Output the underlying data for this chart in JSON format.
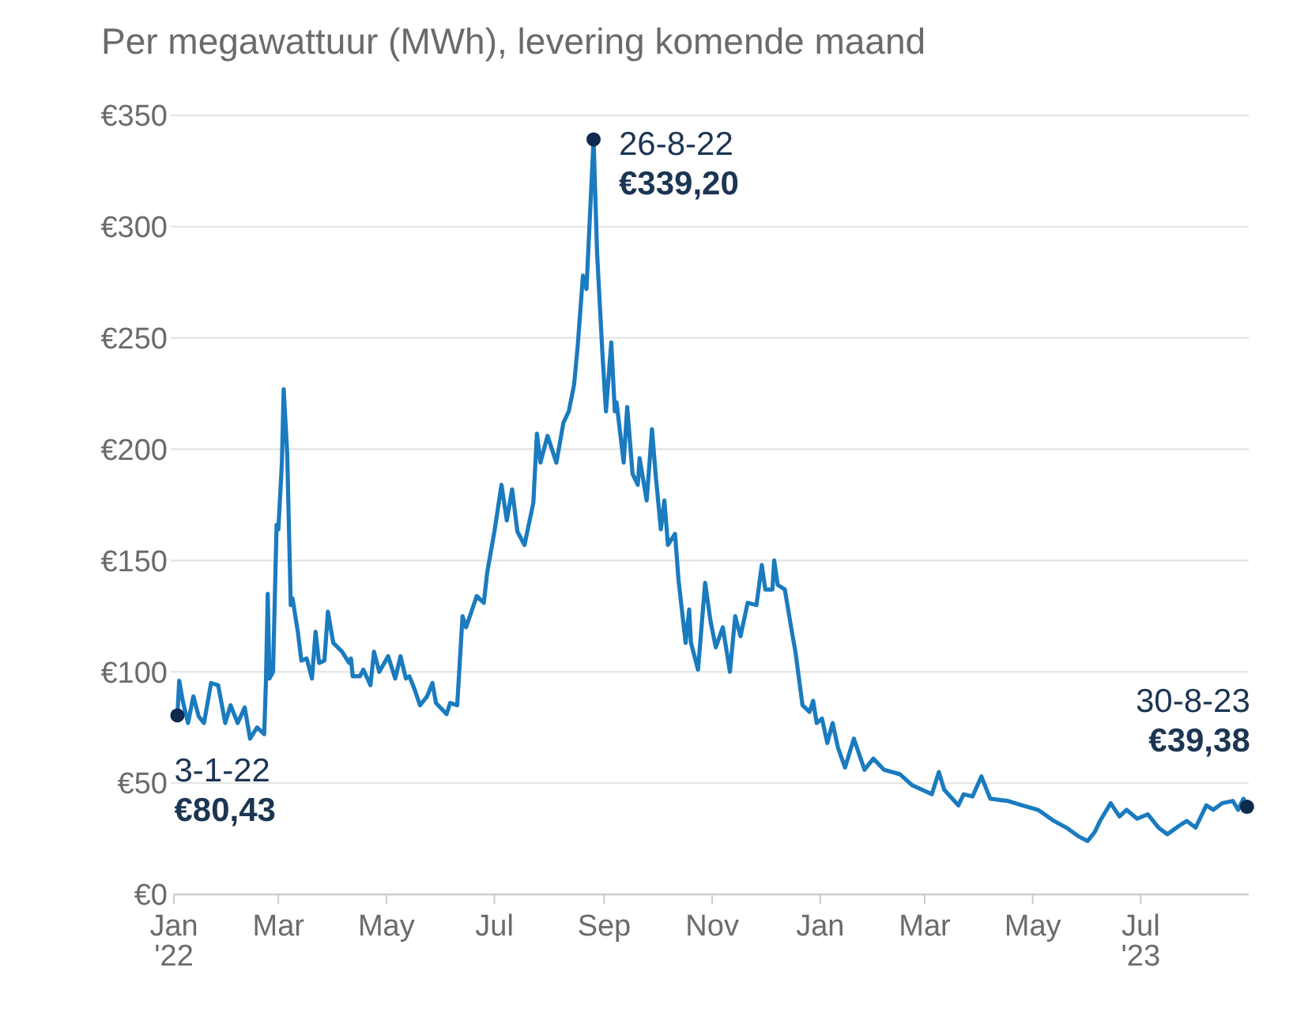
{
  "chart_data": {
    "type": "line",
    "title": "Per megawattuur (MWh), levering komende maand",
    "xlim": [
      "2022-01-01",
      "2023-08-31"
    ],
    "xticks": [
      {
        "value": "2022-01-01",
        "label": "Jan\n'22"
      },
      {
        "value": "2022-03-01",
        "label": "Mar"
      },
      {
        "value": "2022-05-01",
        "label": "May"
      },
      {
        "value": "2022-07-01",
        "label": "Jul"
      },
      {
        "value": "2022-09-01",
        "label": "Sep"
      },
      {
        "value": "2022-11-01",
        "label": "Nov"
      },
      {
        "value": "2023-01-01",
        "label": "Jan"
      },
      {
        "value": "2023-03-01",
        "label": "Mar"
      },
      {
        "value": "2023-05-01",
        "label": "May"
      },
      {
        "value": "2023-07-01",
        "label": "Jul\n\n'23"
      }
    ],
    "ylim": [
      0,
      350
    ],
    "yticks": [
      {
        "value": 0,
        "label": "€0"
      },
      {
        "value": 50,
        "label": "€50"
      },
      {
        "value": 100,
        "label": "€100"
      },
      {
        "value": 150,
        "label": "€150"
      },
      {
        "value": 200,
        "label": "€200"
      },
      {
        "value": 250,
        "label": "€250"
      },
      {
        "value": 300,
        "label": "€300"
      },
      {
        "value": 350,
        "label": "€350"
      }
    ],
    "grid": "y",
    "marker": "none",
    "line_style": "solid",
    "series": [
      {
        "color": "#1a7bbf",
        "x": [
          "2022-01-03",
          "2022-01-04",
          "2022-01-06",
          "2022-01-09",
          "2022-01-12",
          "2022-01-15",
          "2022-01-18",
          "2022-01-22",
          "2022-01-26",
          "2022-01-30",
          "2022-02-02",
          "2022-02-06",
          "2022-02-10",
          "2022-02-13",
          "2022-02-17",
          "2022-02-21",
          "2022-02-22",
          "2022-02-23",
          "2022-02-24",
          "2022-02-26",
          "2022-02-28",
          "2022-03-01",
          "2022-03-03",
          "2022-03-04",
          "2022-03-06",
          "2022-03-08",
          "2022-03-09",
          "2022-03-12",
          "2022-03-14",
          "2022-03-17",
          "2022-03-20",
          "2022-03-22",
          "2022-03-24",
          "2022-03-27",
          "2022-03-29",
          "2022-04-01",
          "2022-04-06",
          "2022-04-10",
          "2022-04-11",
          "2022-04-12",
          "2022-04-16",
          "2022-04-18",
          "2022-04-22",
          "2022-04-24",
          "2022-04-27",
          "2022-05-02",
          "2022-05-06",
          "2022-05-09",
          "2022-05-12",
          "2022-05-14",
          "2022-05-17",
          "2022-05-20",
          "2022-05-24",
          "2022-05-27",
          "2022-05-29",
          "2022-06-04",
          "2022-06-06",
          "2022-06-10",
          "2022-06-13",
          "2022-06-15",
          "2022-06-18",
          "2022-06-21",
          "2022-06-25",
          "2022-06-27",
          "2022-07-01",
          "2022-07-05",
          "2022-07-08",
          "2022-07-11",
          "2022-07-14",
          "2022-07-18",
          "2022-07-23",
          "2022-07-25",
          "2022-07-27",
          "2022-07-31",
          "2022-08-05",
          "2022-08-09",
          "2022-08-12",
          "2022-08-15",
          "2022-08-17",
          "2022-08-20",
          "2022-08-22",
          "2022-08-26",
          "2022-08-28",
          "2022-08-31",
          "2022-09-02",
          "2022-09-05",
          "2022-09-07",
          "2022-09-08",
          "2022-09-12",
          "2022-09-14",
          "2022-09-17",
          "2022-09-20",
          "2022-09-21",
          "2022-09-25",
          "2022-09-28",
          "2022-09-30",
          "2022-10-03",
          "2022-10-05",
          "2022-10-07",
          "2022-10-11",
          "2022-10-13",
          "2022-10-17",
          "2022-10-19",
          "2022-10-20",
          "2022-10-24",
          "2022-10-28",
          "2022-10-31",
          "2022-11-03",
          "2022-11-07",
          "2022-11-11",
          "2022-11-14",
          "2022-11-17",
          "2022-11-21",
          "2022-11-26",
          "2022-11-29",
          "2022-12-01",
          "2022-12-05",
          "2022-12-06",
          "2022-12-08",
          "2022-12-12",
          "2022-12-16",
          "2022-12-18",
          "2022-12-22",
          "2022-12-26",
          "2022-12-28",
          "2022-12-30",
          "2023-01-02",
          "2023-01-05",
          "2023-01-08",
          "2023-01-11",
          "2023-01-15",
          "2023-01-20",
          "2023-01-26",
          "2023-01-31",
          "2023-02-06",
          "2023-02-15",
          "2023-02-22",
          "2023-03-05",
          "2023-03-09",
          "2023-03-12",
          "2023-03-20",
          "2023-03-23",
          "2023-03-28",
          "2023-04-02",
          "2023-04-07",
          "2023-04-17",
          "2023-04-25",
          "2023-05-04",
          "2023-05-13",
          "2023-05-20",
          "2023-05-27",
          "2023-06-01",
          "2023-06-05",
          "2023-06-08",
          "2023-06-14",
          "2023-06-19",
          "2023-06-23",
          "2023-06-29",
          "2023-07-05",
          "2023-07-11",
          "2023-07-16",
          "2023-07-23",
          "2023-07-27",
          "2023-08-01",
          "2023-08-07",
          "2023-08-11",
          "2023-08-16",
          "2023-08-22",
          "2023-08-25",
          "2023-08-28",
          "2023-08-30"
        ],
        "values": [
          80.43,
          96,
          87,
          77,
          89,
          80,
          77,
          95,
          94,
          77,
          85,
          77,
          84,
          70,
          75,
          72,
          96,
          135,
          97,
          100,
          166,
          164,
          194,
          227,
          198,
          130,
          133,
          118,
          105,
          106,
          97,
          118,
          104,
          105,
          127,
          113,
          109,
          104,
          106,
          98,
          98,
          101,
          94,
          109,
          100,
          107,
          97,
          107,
          97,
          98,
          92,
          85,
          89,
          95,
          86,
          81,
          86,
          85,
          125,
          120,
          127,
          134,
          131,
          145,
          163,
          184,
          168,
          182,
          163,
          157,
          176,
          207,
          194,
          206,
          194,
          212,
          217,
          229,
          246,
          278,
          272,
          339.2,
          288,
          243,
          217,
          248,
          217,
          221,
          194,
          219,
          189,
          184,
          196,
          177,
          209,
          189,
          164,
          177,
          157,
          162,
          141,
          113,
          128,
          113,
          101,
          140,
          123,
          111,
          120,
          100,
          125,
          116,
          131,
          130,
          148,
          137,
          137,
          150,
          139,
          137,
          118,
          109,
          85,
          82,
          87,
          77,
          79,
          68,
          77,
          66,
          57,
          70,
          56,
          61,
          56,
          54,
          49,
          45,
          55,
          47,
          40,
          45,
          44,
          53,
          43,
          42,
          40,
          38,
          33,
          30,
          26,
          24,
          28,
          33,
          41,
          35,
          38,
          34,
          36,
          30,
          27,
          31,
          33,
          30,
          40,
          38,
          41,
          42,
          38,
          43,
          39.38
        ]
      }
    ],
    "annotations": [
      {
        "text": "3-1-22\n€80,43",
        "x": "2022-01-03",
        "y": 80.43
      },
      {
        "text": "26-8-22\n€339,20",
        "x": "2022-08-26",
        "y": 339.2
      },
      {
        "text": "30-8-23\n€39,38",
        "x": "2023-08-30",
        "y": 39.38
      }
    ]
  }
}
